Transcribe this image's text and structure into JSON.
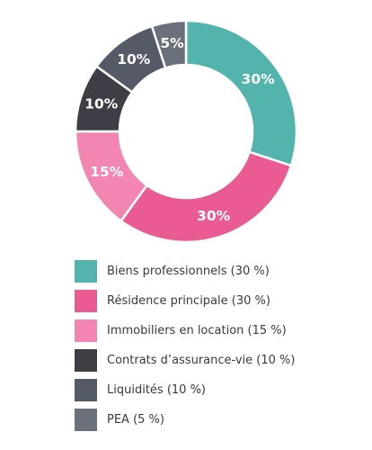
{
  "chart_data": {
    "type": "pie",
    "donut": true,
    "legend_position": "bottom",
    "slices": [
      {
        "label": "Biens professionnels (30 %)",
        "value": 30,
        "display": "30%",
        "color": "#53b4ad"
      },
      {
        "label": "Résidence principale (30 %)",
        "value": 30,
        "display": "30%",
        "color": "#ea5b93"
      },
      {
        "label": "Immobiliers en location (15 %)",
        "value": 15,
        "display": "15%",
        "color": "#f285b2"
      },
      {
        "label": "Contrats d’assurance-vie (10 %)",
        "value": 10,
        "display": "10%",
        "color": "#3e3f46"
      },
      {
        "label": "Liquidités (10 %)",
        "value": 10,
        "display": "10%",
        "color": "#545a66"
      },
      {
        "label": "PEA (5 %)",
        "value": 5,
        "display": "5%",
        "color": "#6a717c"
      }
    ]
  }
}
